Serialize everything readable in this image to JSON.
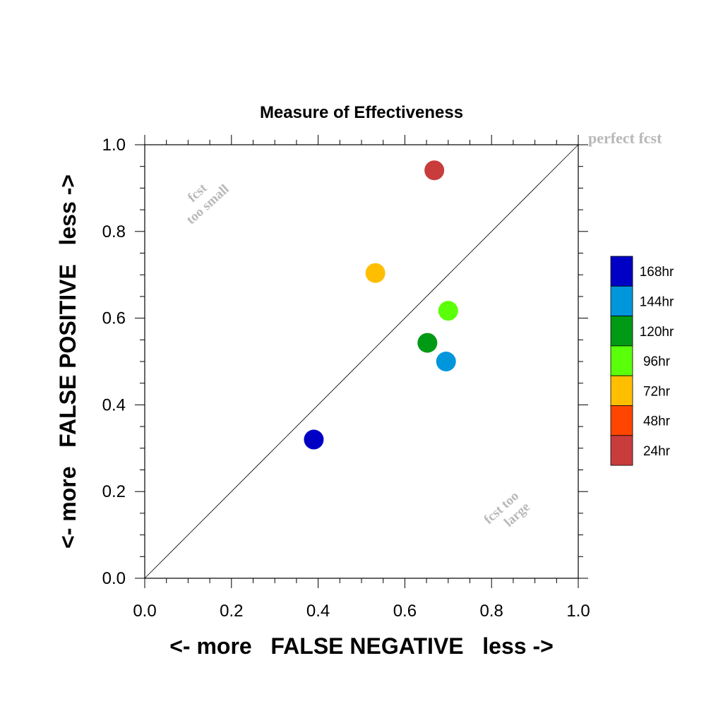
{
  "chart_data": {
    "type": "scatter",
    "title": "Measure of Effectiveness",
    "xlabel": "<- more   FALSE NEGATIVE   less ->",
    "ylabel": "<- more   FALSE POSITIVE   less ->",
    "xlim": [
      0,
      1
    ],
    "ylim": [
      0,
      1
    ],
    "x_ticks": [
      "0.0",
      "0.2",
      "0.4",
      "0.6",
      "0.8",
      "1.0"
    ],
    "y_ticks": [
      "0.0",
      "0.2",
      "0.4",
      "0.6",
      "0.8",
      "1.0"
    ],
    "grid": false,
    "reference_line": "diagonal y = x",
    "annotations": {
      "perfect": "perfect fcst",
      "small_line1": "fcst",
      "small_line2": "too small",
      "large_line1": "fcst too",
      "large_line2": "large",
      "color": "#b8b8b8"
    },
    "legend_position": "right",
    "series": [
      {
        "name": "168hr",
        "color": "#0000c4",
        "x": 0.39,
        "y": 0.32
      },
      {
        "name": "144hr",
        "color": "#0096dc",
        "x": 0.695,
        "y": 0.5
      },
      {
        "name": "120hr",
        "color": "#009a14",
        "x": 0.652,
        "y": 0.543
      },
      {
        "name": "96hr",
        "color": "#5aff0a",
        "x": 0.7,
        "y": 0.617
      },
      {
        "name": "72hr",
        "color": "#ffbe00",
        "x": 0.532,
        "y": 0.704
      },
      {
        "name": "48hr",
        "color": "#ff4600",
        "x": null,
        "y": null
      },
      {
        "name": "24hr",
        "color": "#c83c3c",
        "x": 0.668,
        "y": 0.941
      }
    ]
  }
}
